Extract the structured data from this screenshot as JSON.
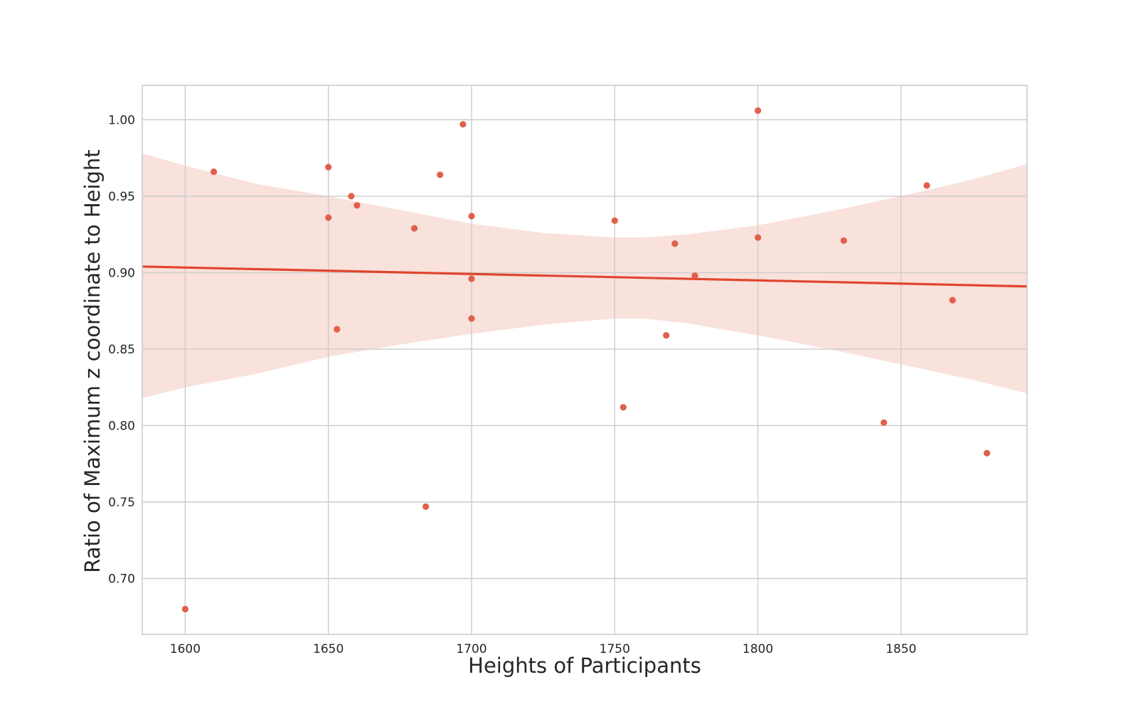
{
  "chart_data": {
    "type": "scatter",
    "title": "",
    "xlabel": "Heights of Participants",
    "ylabel": "Ratio of Maximum z coordinate to Height",
    "xlim": [
      1585,
      1894
    ],
    "ylim": [
      0.6635,
      1.0225
    ],
    "x_ticks": [
      1600,
      1650,
      1700,
      1750,
      1800,
      1850
    ],
    "x_tick_labels": [
      "1600",
      "1650",
      "1700",
      "1750",
      "1800",
      "1850"
    ],
    "y_ticks": [
      0.7,
      0.75,
      0.8,
      0.85,
      0.9,
      0.95,
      1.0
    ],
    "y_tick_labels": [
      "0.70",
      "0.75",
      "0.80",
      "0.85",
      "0.90",
      "0.95",
      "1.00"
    ],
    "grid": true,
    "colors": {
      "points": "#e0604b",
      "line": "#e0452f",
      "band": "#f8dcd6",
      "grid": "#cccccc",
      "frame": "#cccccc"
    },
    "points": {
      "x": [
        1600,
        1610,
        1650,
        1650,
        1653,
        1658,
        1660,
        1680,
        1684,
        1689,
        1697,
        1700,
        1700,
        1700,
        1750,
        1753,
        1768,
        1771,
        1778,
        1800,
        1800,
        1830,
        1844,
        1859,
        1868,
        1880
      ],
      "y": [
        0.68,
        0.966,
        0.969,
        0.936,
        0.863,
        0.95,
        0.944,
        0.929,
        0.747,
        0.964,
        0.997,
        0.937,
        0.896,
        0.87,
        0.934,
        0.812,
        0.859,
        0.919,
        0.898,
        1.006,
        0.923,
        0.921,
        0.802,
        0.957,
        0.882,
        0.782
      ]
    },
    "regression": {
      "x": [
        1585,
        1894
      ],
      "y": [
        0.904,
        0.891
      ]
    },
    "confidence_band": {
      "x": [
        1585,
        1600,
        1625,
        1650,
        1675,
        1700,
        1725,
        1750,
        1760,
        1775,
        1800,
        1825,
        1850,
        1875,
        1894
      ],
      "upper": [
        0.978,
        0.97,
        0.958,
        0.95,
        0.941,
        0.932,
        0.926,
        0.923,
        0.923,
        0.925,
        0.931,
        0.94,
        0.95,
        0.961,
        0.971
      ],
      "lower": [
        0.818,
        0.825,
        0.834,
        0.845,
        0.853,
        0.86,
        0.866,
        0.87,
        0.87,
        0.867,
        0.859,
        0.85,
        0.84,
        0.83,
        0.821
      ]
    }
  }
}
